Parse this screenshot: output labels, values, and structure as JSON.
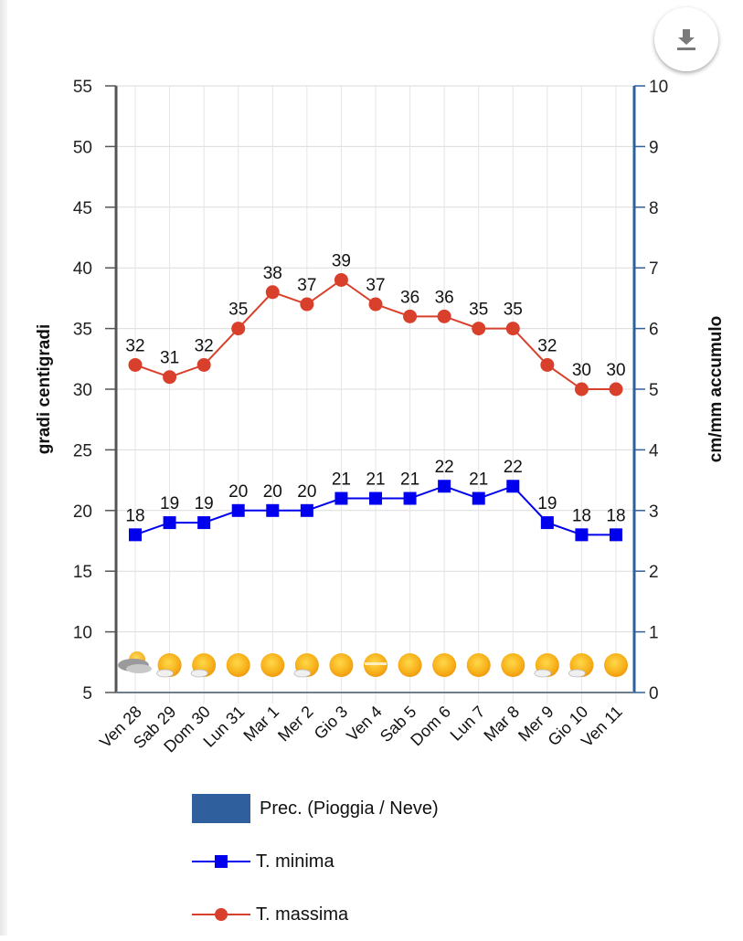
{
  "toolbar": {
    "download_icon": "download-icon"
  },
  "colors": {
    "max": "#d9402b",
    "min": "#0000ee",
    "precip": "#2f5f9c",
    "grid": "#dcdcdc",
    "left_axis": "#555555",
    "right_axis": "#2f5f9c"
  },
  "chart_data": {
    "type": "line",
    "title": "",
    "categories": [
      "Ven 28",
      "Sab 29",
      "Dom 30",
      "Lun 31",
      "Mar 1",
      "Mer 2",
      "Gio 3",
      "Ven 4",
      "Sab 5",
      "Dom 6",
      "Lun 7",
      "Mar 8",
      "Mer 9",
      "Gio 10",
      "Ven 11"
    ],
    "series": [
      {
        "name": "T. massima",
        "values": [
          32,
          31,
          32,
          35,
          38,
          37,
          39,
          37,
          36,
          36,
          35,
          35,
          32,
          30,
          30
        ],
        "marker": "circle",
        "color": "#d9402b",
        "axis": "left"
      },
      {
        "name": "T. minima",
        "values": [
          18,
          19,
          19,
          20,
          20,
          20,
          21,
          21,
          21,
          22,
          21,
          22,
          19,
          18,
          18
        ],
        "marker": "square",
        "color": "#0000ee",
        "axis": "left"
      },
      {
        "name": "Prec. (Pioggia / Neve)",
        "values": [
          0,
          0,
          0,
          0,
          0,
          0,
          0,
          0,
          0,
          0,
          0,
          0,
          0,
          0,
          0
        ],
        "type": "bar",
        "color": "#2f5f9c",
        "axis": "right"
      }
    ],
    "weather_icons": [
      "partly-cloudy",
      "sun-cloud",
      "sun-cloud",
      "sun",
      "sun",
      "sun-cloud",
      "sun",
      "sun-haze",
      "sun",
      "sun",
      "sun",
      "sun",
      "sun-cloud",
      "sun-cloud",
      "sun"
    ],
    "ylabel": "gradi centigradi",
    "y2label": "cm/mm accumulo",
    "ylim": [
      5,
      55
    ],
    "y2lim": [
      0,
      10
    ],
    "yticks": [
      5,
      10,
      15,
      20,
      25,
      30,
      35,
      40,
      45,
      50,
      55
    ],
    "y2ticks": [
      0,
      1,
      2,
      3,
      4,
      5,
      6,
      7,
      8,
      9,
      10
    ],
    "grid": true,
    "legend_position": "bottom"
  },
  "legend": [
    {
      "label": "Prec. (Pioggia / Neve)"
    },
    {
      "label": "T. minima"
    },
    {
      "label": "T. massima"
    }
  ]
}
